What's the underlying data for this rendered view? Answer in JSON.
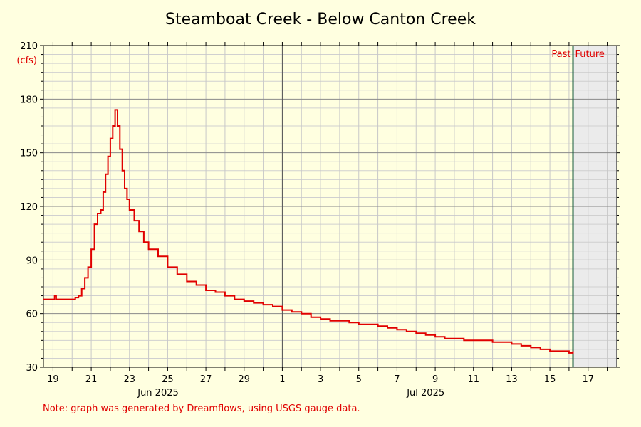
{
  "chart_data": {
    "type": "line",
    "title": "Steamboat Creek - Below Canton Creek",
    "ylabel": "(cfs)",
    "ylim": [
      30,
      210
    ],
    "yticks": [
      30,
      60,
      90,
      120,
      150,
      180,
      210
    ],
    "xlim": [
      "2025-06-18 12:00",
      "2025-07-18 12:00"
    ],
    "xtick_labels": [
      "19",
      "21",
      "23",
      "25",
      "27",
      "29",
      "1",
      "3",
      "5",
      "7",
      "9",
      "11",
      "13",
      "15",
      "17"
    ],
    "xtick_dates": [
      "2025-06-19",
      "2025-06-21",
      "2025-06-23",
      "2025-06-25",
      "2025-06-27",
      "2025-06-29",
      "2025-07-01",
      "2025-07-03",
      "2025-07-05",
      "2025-07-07",
      "2025-07-09",
      "2025-07-11",
      "2025-07-13",
      "2025-07-15",
      "2025-07-17"
    ],
    "month_labels": [
      {
        "label": "Jun 2025",
        "date": "2025-06-24 12:00"
      },
      {
        "label": "Jul 2025",
        "date": "2025-07-08 12:00"
      }
    ],
    "month_divider_date": "2025-07-01",
    "now_date": "2025-07-16 05:00",
    "past_label": "Past",
    "future_label": "Future",
    "grid": true,
    "series": [
      {
        "color": "#e00000",
        "points": [
          [
            "2025-06-18 12:00",
            68
          ],
          [
            "2025-06-19 00:00",
            68
          ],
          [
            "2025-06-19 02:00",
            70
          ],
          [
            "2025-06-19 04:00",
            68
          ],
          [
            "2025-06-19 12:00",
            68
          ],
          [
            "2025-06-20 00:00",
            68
          ],
          [
            "2025-06-20 04:00",
            69
          ],
          [
            "2025-06-20 08:00",
            70
          ],
          [
            "2025-06-20 12:00",
            74
          ],
          [
            "2025-06-20 16:00",
            80
          ],
          [
            "2025-06-20 20:00",
            86
          ],
          [
            "2025-06-21 00:00",
            96
          ],
          [
            "2025-06-21 04:00",
            110
          ],
          [
            "2025-06-21 08:00",
            116
          ],
          [
            "2025-06-21 12:00",
            118
          ],
          [
            "2025-06-21 15:00",
            128
          ],
          [
            "2025-06-21 18:00",
            138
          ],
          [
            "2025-06-21 21:00",
            148
          ],
          [
            "2025-06-22 00:00",
            158
          ],
          [
            "2025-06-22 03:00",
            165
          ],
          [
            "2025-06-22 06:00",
            174
          ],
          [
            "2025-06-22 09:00",
            165
          ],
          [
            "2025-06-22 12:00",
            152
          ],
          [
            "2025-06-22 15:00",
            140
          ],
          [
            "2025-06-22 18:00",
            130
          ],
          [
            "2025-06-22 21:00",
            124
          ],
          [
            "2025-06-23 00:00",
            118
          ],
          [
            "2025-06-23 06:00",
            112
          ],
          [
            "2025-06-23 12:00",
            106
          ],
          [
            "2025-06-23 18:00",
            100
          ],
          [
            "2025-06-24 00:00",
            96
          ],
          [
            "2025-06-24 12:00",
            92
          ],
          [
            "2025-06-25 00:00",
            86
          ],
          [
            "2025-06-25 12:00",
            82
          ],
          [
            "2025-06-26 00:00",
            78
          ],
          [
            "2025-06-26 12:00",
            76
          ],
          [
            "2025-06-27 00:00",
            73
          ],
          [
            "2025-06-27 12:00",
            72
          ],
          [
            "2025-06-28 00:00",
            70
          ],
          [
            "2025-06-28 12:00",
            68
          ],
          [
            "2025-06-29 00:00",
            67
          ],
          [
            "2025-06-29 12:00",
            66
          ],
          [
            "2025-06-30 00:00",
            65
          ],
          [
            "2025-06-30 12:00",
            64
          ],
          [
            "2025-07-01 00:00",
            62
          ],
          [
            "2025-07-01 12:00",
            61
          ],
          [
            "2025-07-02 00:00",
            60
          ],
          [
            "2025-07-02 12:00",
            58
          ],
          [
            "2025-07-03 00:00",
            57
          ],
          [
            "2025-07-03 12:00",
            56
          ],
          [
            "2025-07-04 00:00",
            56
          ],
          [
            "2025-07-04 12:00",
            55
          ],
          [
            "2025-07-05 00:00",
            54
          ],
          [
            "2025-07-05 12:00",
            54
          ],
          [
            "2025-07-06 00:00",
            53
          ],
          [
            "2025-07-06 12:00",
            52
          ],
          [
            "2025-07-07 00:00",
            51
          ],
          [
            "2025-07-07 12:00",
            50
          ],
          [
            "2025-07-08 00:00",
            49
          ],
          [
            "2025-07-08 12:00",
            48
          ],
          [
            "2025-07-09 00:00",
            47
          ],
          [
            "2025-07-09 12:00",
            46
          ],
          [
            "2025-07-10 00:00",
            46
          ],
          [
            "2025-07-10 12:00",
            45
          ],
          [
            "2025-07-11 00:00",
            45
          ],
          [
            "2025-07-11 12:00",
            45
          ],
          [
            "2025-07-12 00:00",
            44
          ],
          [
            "2025-07-12 12:00",
            44
          ],
          [
            "2025-07-13 00:00",
            43
          ],
          [
            "2025-07-13 12:00",
            42
          ],
          [
            "2025-07-14 00:00",
            41
          ],
          [
            "2025-07-14 12:00",
            40
          ],
          [
            "2025-07-15 00:00",
            39
          ],
          [
            "2025-07-15 12:00",
            39
          ],
          [
            "2025-07-16 00:00",
            38
          ],
          [
            "2025-07-16 05:00",
            39
          ]
        ]
      }
    ],
    "note": "Note: graph was generated by Dreamflows, using USGS gauge data."
  }
}
